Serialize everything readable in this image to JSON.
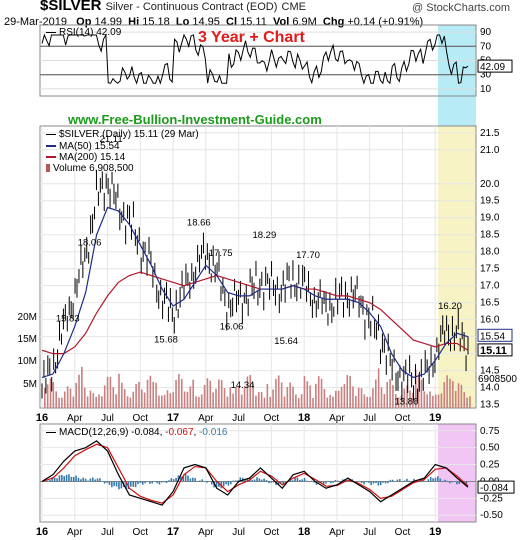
{
  "header": {
    "symbol": "$SILVER",
    "description": "Silver - Continuous Contract (EOD)",
    "exchange": "CME",
    "brand": "@ StockCharts.com",
    "date": "29-Mar-2019",
    "open_label": "Op",
    "open": "14.99",
    "high_label": "Hi",
    "high": "15.18",
    "low_label": "Lo",
    "low": "14.95",
    "close_label": "Cl",
    "close": "15.11",
    "vol_label": "Vol",
    "vol": "6.9M",
    "chg_label": "Chg",
    "chg": "+0.14 (+0.91%)"
  },
  "banner": "3 Year + Chart",
  "website": "www.Free-Bullion-Investment-Guide.com",
  "legend": {
    "rsi": "RSI(14) 42.09",
    "price": "$SILVER (Daily) 15.11 (29 Mar)",
    "ma50": "MA(50) 15.54",
    "ma200": "MA(200) 15.14",
    "volume": "Volume 6,908,500",
    "macd_prefix": "MACD(12,26,9)",
    "macd_v1": "-0.084",
    "macd_v2": "-0.067",
    "macd_v3": "-0.016"
  },
  "colors": {
    "price_bars": "#000000",
    "ma50": "#1f2d8a",
    "ma200": "#b3162b",
    "volume_bars": "#c88080",
    "rsi_line": "#000000",
    "macd_line": "#000000",
    "signal_line": "#cc1111",
    "histogram": "#3a7aa8",
    "highlight_rsi": "#b7ecf7",
    "highlight_price": "#f7f3c4",
    "highlight_macd": "#f1c5f4",
    "banner_text": "#e21b1b",
    "website_text": "#1c9b1c"
  },
  "chart_data": [
    {
      "type": "line",
      "title": "RSI(14) 42.09",
      "yticks": [
        90,
        70,
        50,
        30,
        10
      ],
      "ylim": [
        0,
        100
      ],
      "reference_lines": [
        70,
        30
      ],
      "last_value": 42.09,
      "last_value_label": "42.09"
    },
    {
      "type": "ohlc",
      "title": "$SILVER (Daily) 15.11 (29 Mar)",
      "x_tick_labels": [
        "16",
        "Apr",
        "Jul",
        "Oct",
        "17",
        "Apr",
        "Jul",
        "Oct",
        "18",
        "Apr",
        "Jul",
        "Oct",
        "19"
      ],
      "yticks": [
        21.5,
        21.0,
        20.0,
        19.5,
        19.0,
        18.5,
        18.0,
        17.5,
        17.0,
        16.5,
        16.0,
        15.5,
        15.0,
        14.5,
        14.0,
        13.5
      ],
      "ylim": [
        13.4,
        21.7
      ],
      "grid": true,
      "x": [
        0,
        1,
        2,
        3,
        4,
        5,
        6,
        7,
        8,
        9,
        10,
        11,
        12,
        13,
        14,
        15,
        16,
        17,
        18,
        19,
        20,
        21,
        22,
        23,
        24,
        25,
        26,
        27,
        28,
        29,
        30,
        31,
        32,
        33,
        34,
        35,
        36,
        37,
        38,
        39
      ],
      "x_tick_positions": [
        0,
        3,
        6,
        9,
        12,
        15,
        18,
        21,
        24,
        27,
        30,
        33,
        36
      ],
      "close": [
        14.0,
        14.6,
        15.8,
        16.8,
        17.9,
        19.6,
        20.1,
        19.3,
        18.9,
        18.2,
        17.6,
        16.6,
        16.2,
        16.9,
        17.5,
        18.0,
        17.4,
        16.4,
        16.6,
        16.8,
        17.1,
        17.0,
        16.9,
        17.2,
        17.0,
        16.6,
        16.4,
        16.5,
        16.8,
        16.6,
        16.0,
        15.5,
        14.6,
        14.3,
        14.2,
        14.3,
        15.0,
        15.7,
        15.6,
        15.1
      ],
      "ma50": [
        14.3,
        14.4,
        15.0,
        15.8,
        16.8,
        18.5,
        19.3,
        19.2,
        18.8,
        18.2,
        17.6,
        16.9,
        16.4,
        16.6,
        17.1,
        17.6,
        17.3,
        16.8,
        16.7,
        16.7,
        16.9,
        16.9,
        16.9,
        17.0,
        16.9,
        16.7,
        16.6,
        16.6,
        16.6,
        16.5,
        16.2,
        15.8,
        15.0,
        14.5,
        14.3,
        14.4,
        14.8,
        15.3,
        15.6,
        15.5
      ],
      "ma200": [
        15.1,
        15.0,
        15.0,
        15.2,
        15.6,
        16.2,
        16.7,
        17.1,
        17.3,
        17.4,
        17.3,
        17.2,
        17.1,
        17.0,
        17.1,
        17.2,
        17.3,
        17.2,
        17.1,
        17.0,
        16.9,
        16.9,
        16.9,
        17.0,
        16.9,
        16.9,
        16.8,
        16.7,
        16.7,
        16.6,
        16.5,
        16.3,
        16.0,
        15.7,
        15.4,
        15.3,
        15.2,
        15.3,
        15.3,
        15.1
      ],
      "annotations": [
        {
          "label": "15.83",
          "x": 2,
          "y": 15.83
        },
        {
          "label": "18.06",
          "x": 4,
          "y": 18.06
        },
        {
          "label": "21.11",
          "x": 6,
          "y": 21.11
        },
        {
          "label": "15.68",
          "x": 11,
          "y": 15.68
        },
        {
          "label": "18.66",
          "x": 14,
          "y": 18.66
        },
        {
          "label": "17.75",
          "x": 16,
          "y": 17.75
        },
        {
          "label": "16.06",
          "x": 17,
          "y": 16.06
        },
        {
          "label": "14.34",
          "x": 18,
          "y": 14.34
        },
        {
          "label": "18.29",
          "x": 20,
          "y": 18.29
        },
        {
          "label": "15.64",
          "x": 22,
          "y": 15.64
        },
        {
          "label": "17.70",
          "x": 24,
          "y": 17.7
        },
        {
          "label": "13.86",
          "x": 33,
          "y": 13.86
        },
        {
          "label": "16.20",
          "x": 37,
          "y": 16.2
        }
      ],
      "right_labels": [
        "15.54",
        "15.11"
      ]
    },
    {
      "type": "bar",
      "title": "Volume 6,908,500",
      "yticks": [
        "20M",
        "15M",
        "10M",
        "5M"
      ],
      "last_value_label": "6908500"
    },
    {
      "type": "line",
      "title": "MACD(12,26,9) -0.084, -0.067, -0.016",
      "yticks": [
        0.75,
        0.5,
        0.25,
        0.0,
        -0.25,
        -0.5
      ],
      "ylim": [
        -0.6,
        0.85
      ],
      "x_tick_labels": [
        "16",
        "Apr",
        "Jul",
        "Oct",
        "17",
        "Apr",
        "Jul",
        "Oct",
        "18",
        "Apr",
        "Jul",
        "Oct",
        "19"
      ],
      "last_value_label": "-0.084",
      "series": [
        {
          "name": "MACD",
          "values": [
            0.0,
            0.1,
            0.3,
            0.45,
            0.5,
            0.6,
            0.45,
            0.1,
            -0.2,
            -0.25,
            -0.3,
            -0.35,
            -0.15,
            0.2,
            0.25,
            0.2,
            -0.1,
            -0.2,
            0.0,
            0.05,
            0.2,
            0.05,
            -0.1,
            0.1,
            0.15,
            0.0,
            -0.1,
            -0.05,
            0.05,
            -0.05,
            -0.15,
            -0.3,
            -0.2,
            -0.1,
            0.0,
            0.05,
            0.25,
            0.2,
            0.05,
            -0.084
          ]
        },
        {
          "name": "Signal",
          "values": [
            0.0,
            0.05,
            0.2,
            0.38,
            0.47,
            0.55,
            0.5,
            0.2,
            -0.1,
            -0.22,
            -0.28,
            -0.32,
            -0.2,
            0.1,
            0.22,
            0.2,
            0.0,
            -0.15,
            -0.05,
            0.02,
            0.15,
            0.08,
            -0.05,
            0.05,
            0.12,
            0.03,
            -0.07,
            -0.06,
            0.02,
            -0.03,
            -0.12,
            -0.25,
            -0.22,
            -0.12,
            -0.02,
            0.03,
            0.18,
            0.2,
            0.08,
            -0.067
          ]
        },
        {
          "name": "Histogram",
          "values": [
            0.0,
            0.05,
            0.1,
            0.07,
            0.03,
            0.05,
            -0.05,
            -0.1,
            -0.1,
            -0.03,
            -0.02,
            -0.03,
            0.05,
            0.1,
            0.03,
            0.0,
            -0.1,
            -0.05,
            0.05,
            0.03,
            0.05,
            -0.03,
            -0.05,
            0.05,
            0.03,
            -0.03,
            -0.03,
            0.01,
            0.03,
            -0.02,
            -0.03,
            -0.05,
            0.02,
            0.02,
            0.02,
            0.02,
            0.07,
            0.0,
            -0.03,
            -0.016
          ]
        }
      ]
    }
  ]
}
